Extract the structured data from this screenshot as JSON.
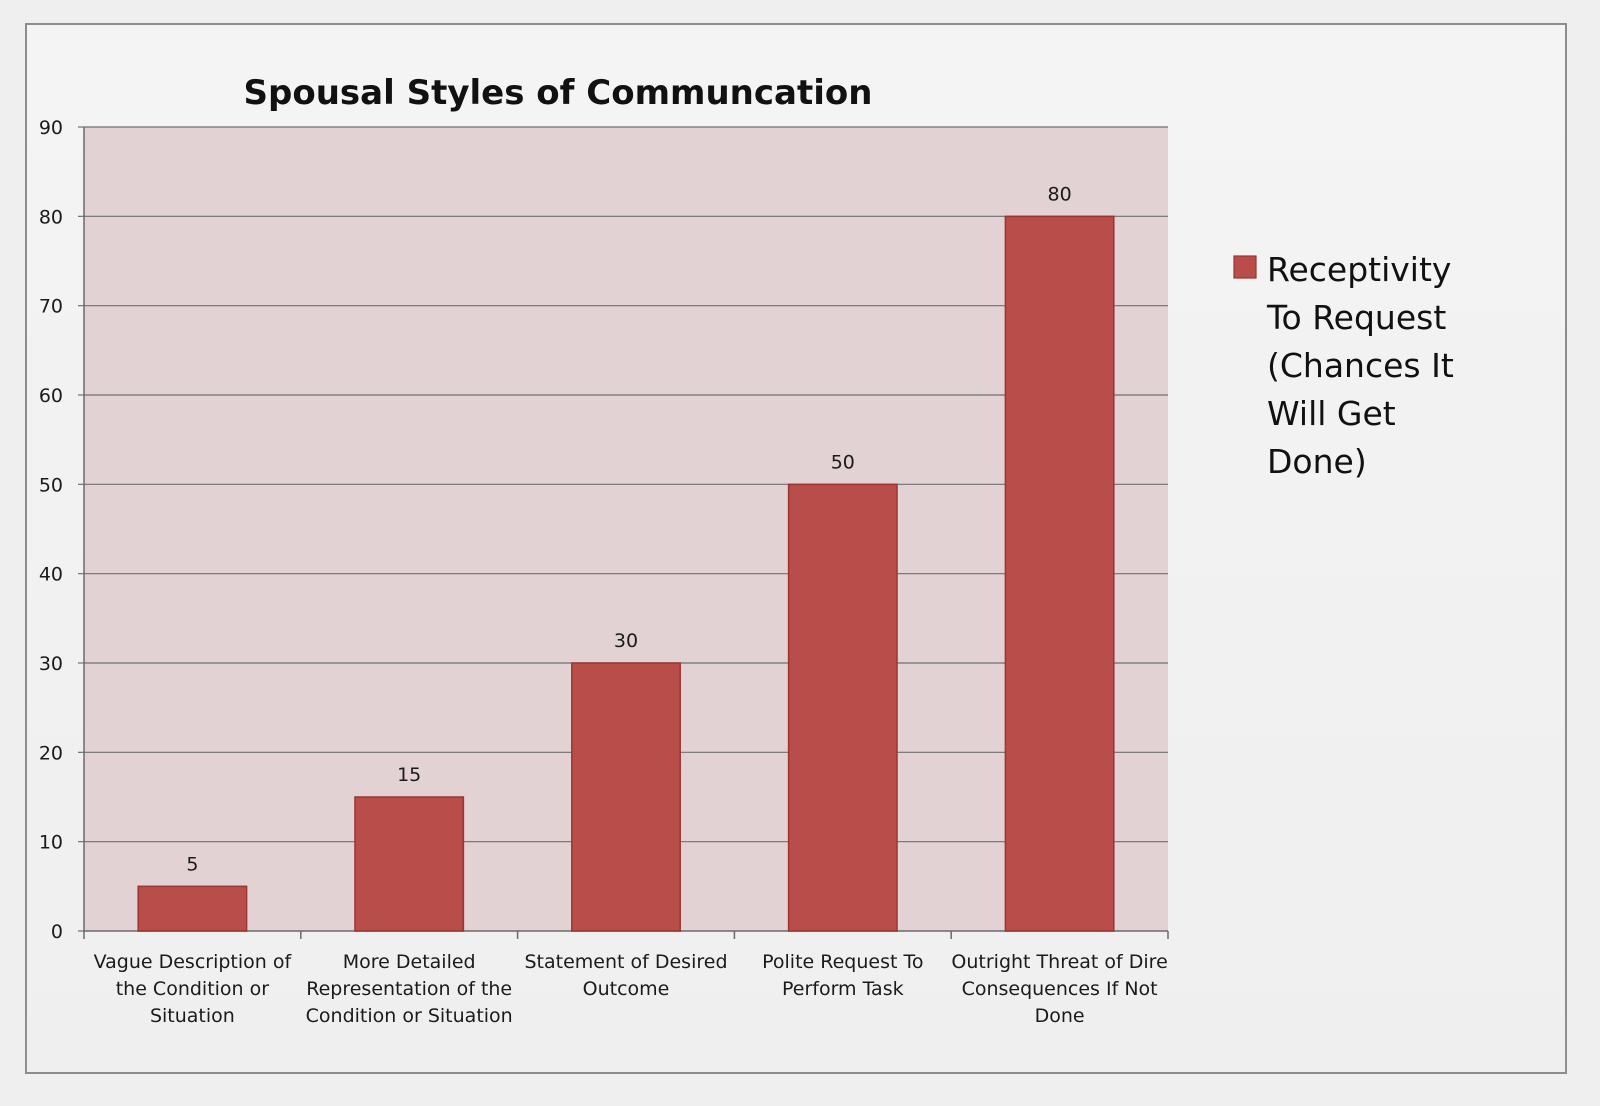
{
  "chart_data": {
    "type": "bar",
    "title": "Spousal Styles of Communcation",
    "categories": [
      [
        "Vague Description of",
        "the Condition or",
        "Situation"
      ],
      [
        "More Detailed",
        "Representation of the",
        "Condition or Situation"
      ],
      [
        "Statement of Desired",
        "Outcome"
      ],
      [
        "Polite Request To",
        "Perform Task"
      ],
      [
        "Outright Threat of Dire",
        "Consequences If Not",
        "Done"
      ]
    ],
    "series": [
      {
        "name": [
          "Receptivity",
          "To Request",
          "(Chances It",
          "Will Get",
          "Done)"
        ],
        "values": [
          5,
          15,
          30,
          50,
          80
        ]
      }
    ],
    "ylim": [
      0,
      90
    ],
    "yticks": [
      0,
      10,
      20,
      30,
      40,
      50,
      60,
      70,
      80,
      90
    ],
    "xlabel": "",
    "ylabel": "",
    "grid": true,
    "legend_position": "right",
    "data_labels": true
  },
  "colors": {
    "bar_fill": "#b94d4a",
    "bar_stroke": "#9a3532",
    "plot_bg": "#e2d2d3",
    "grid": "#707070",
    "frame_bg": "#f1f1f1"
  }
}
